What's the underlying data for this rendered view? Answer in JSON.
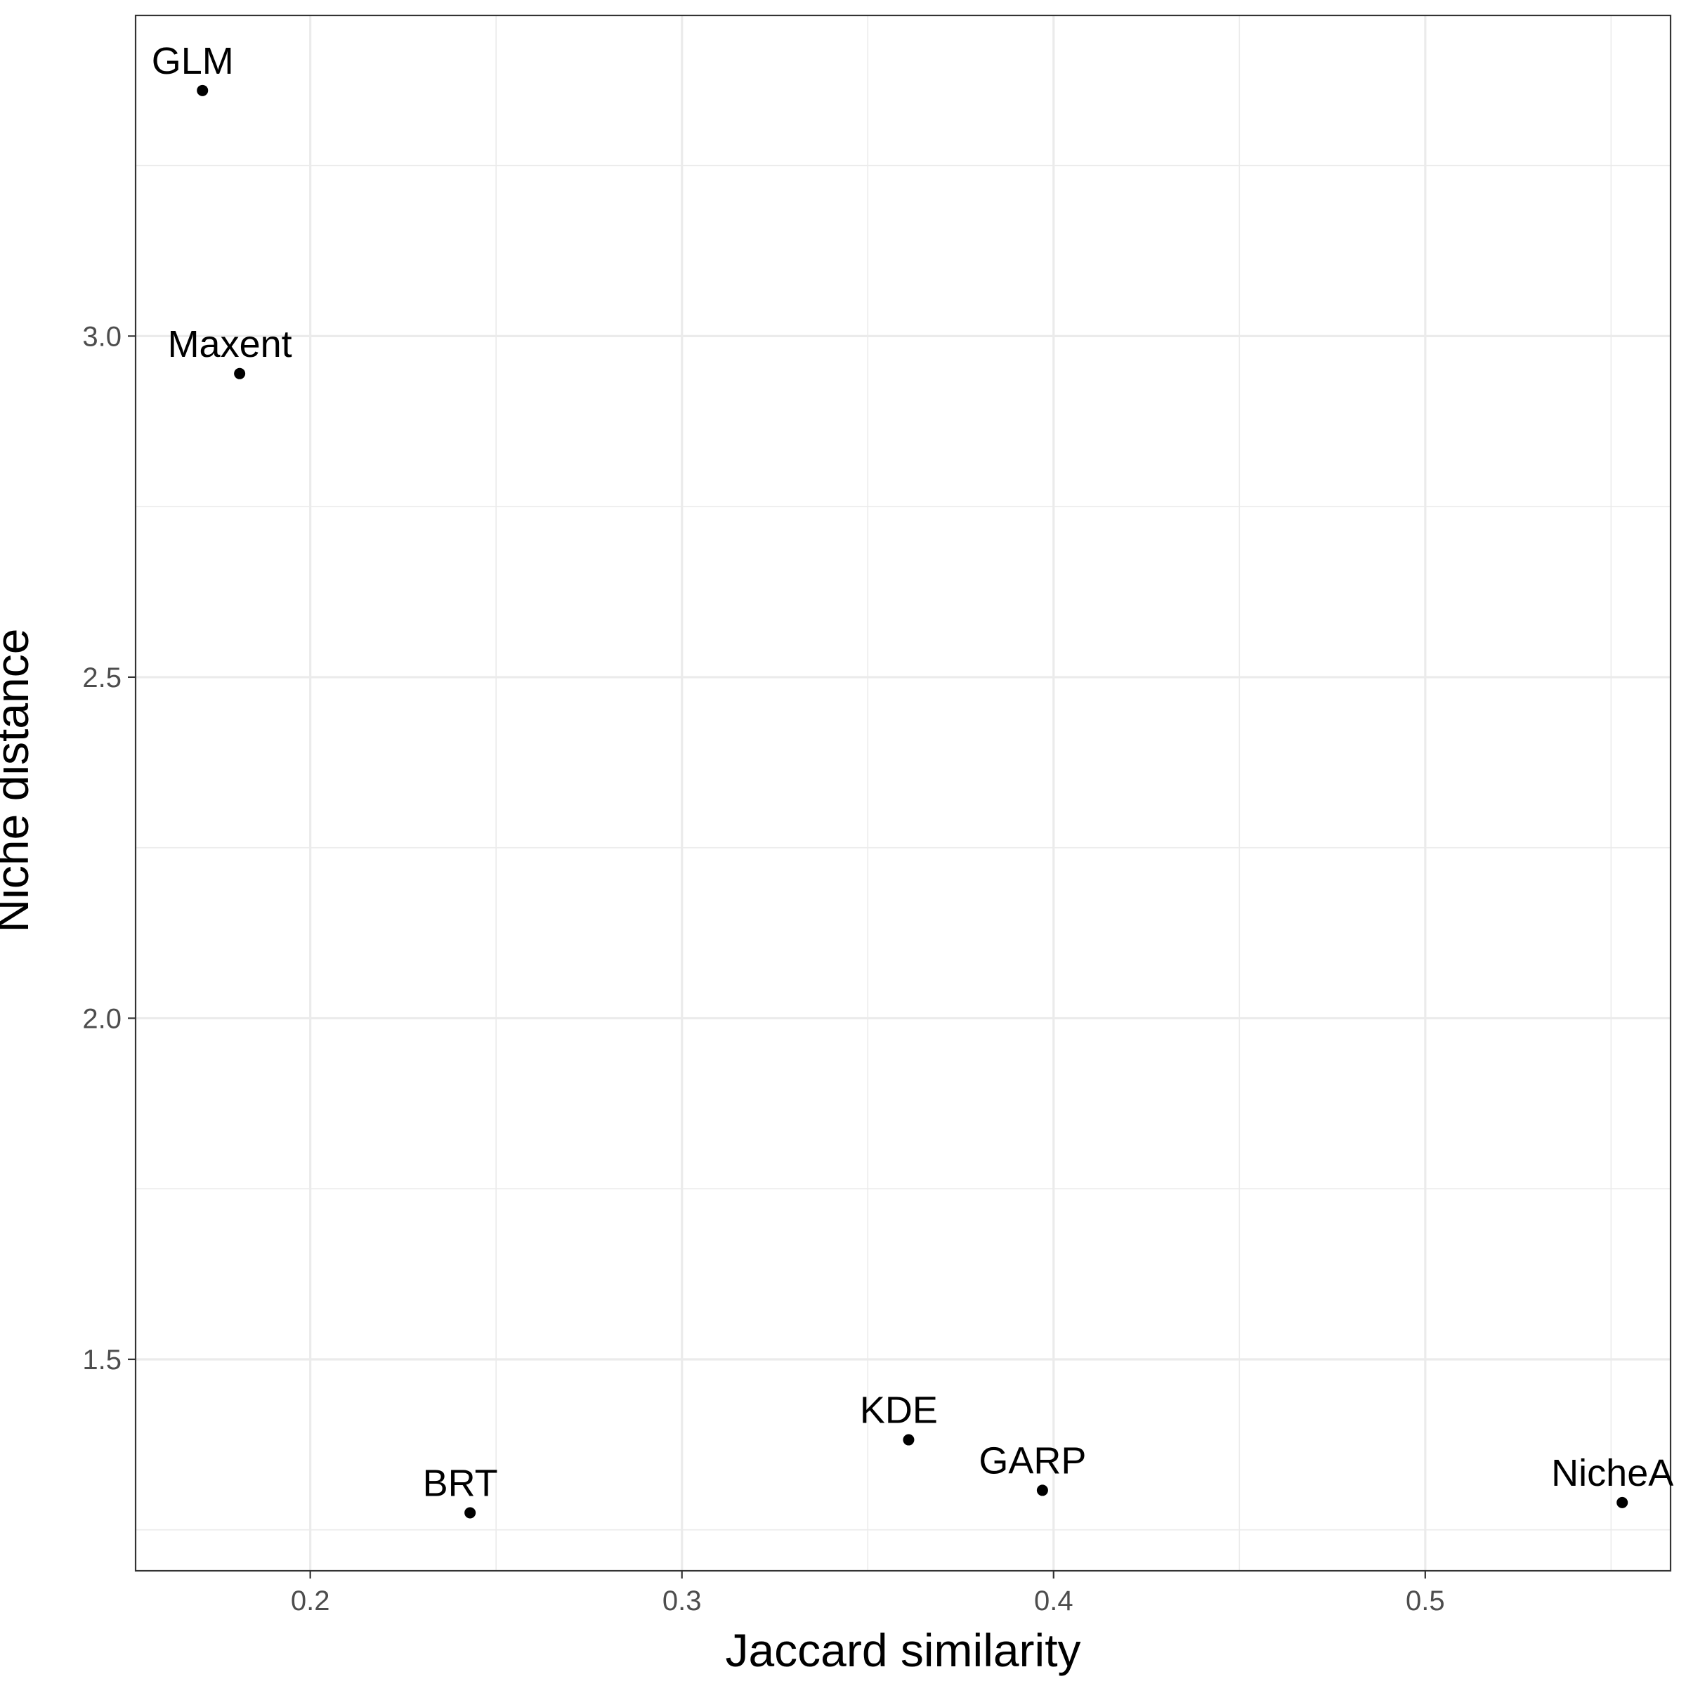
{
  "chart_data": {
    "type": "scatter",
    "title": "",
    "xlabel": "Jaccard similarity",
    "ylabel": "Niche distance",
    "xlim": [
      0.153,
      0.566
    ],
    "ylim": [
      1.19,
      3.47
    ],
    "x_ticks": [
      0.2,
      0.3,
      0.4,
      0.5
    ],
    "x_tick_labels": [
      "0.2",
      "0.3",
      "0.4",
      "0.5"
    ],
    "y_ticks": [
      1.5,
      2.0,
      2.5,
      3.0
    ],
    "y_tick_labels": [
      "1.5",
      "2.0",
      "2.5",
      "3.0"
    ],
    "x_minor": [
      0.15,
      0.25,
      0.35,
      0.45,
      0.55
    ],
    "y_minor": [
      1.25,
      1.75,
      2.25,
      2.75,
      3.25
    ],
    "grid": true,
    "points": [
      {
        "label": "GLM",
        "x": 0.171,
        "y": 3.36
      },
      {
        "label": "Maxent",
        "x": 0.181,
        "y": 2.945
      },
      {
        "label": "BRT",
        "x": 0.243,
        "y": 1.275
      },
      {
        "label": "KDE",
        "x": 0.361,
        "y": 1.382
      },
      {
        "label": "GARP",
        "x": 0.397,
        "y": 1.308
      },
      {
        "label": "NicheA",
        "x": 0.553,
        "y": 1.29
      }
    ],
    "colors": {
      "point": "#000000",
      "grid": "#ebebeb",
      "border": "#333333",
      "tick_text": "#4d4d4d"
    }
  }
}
